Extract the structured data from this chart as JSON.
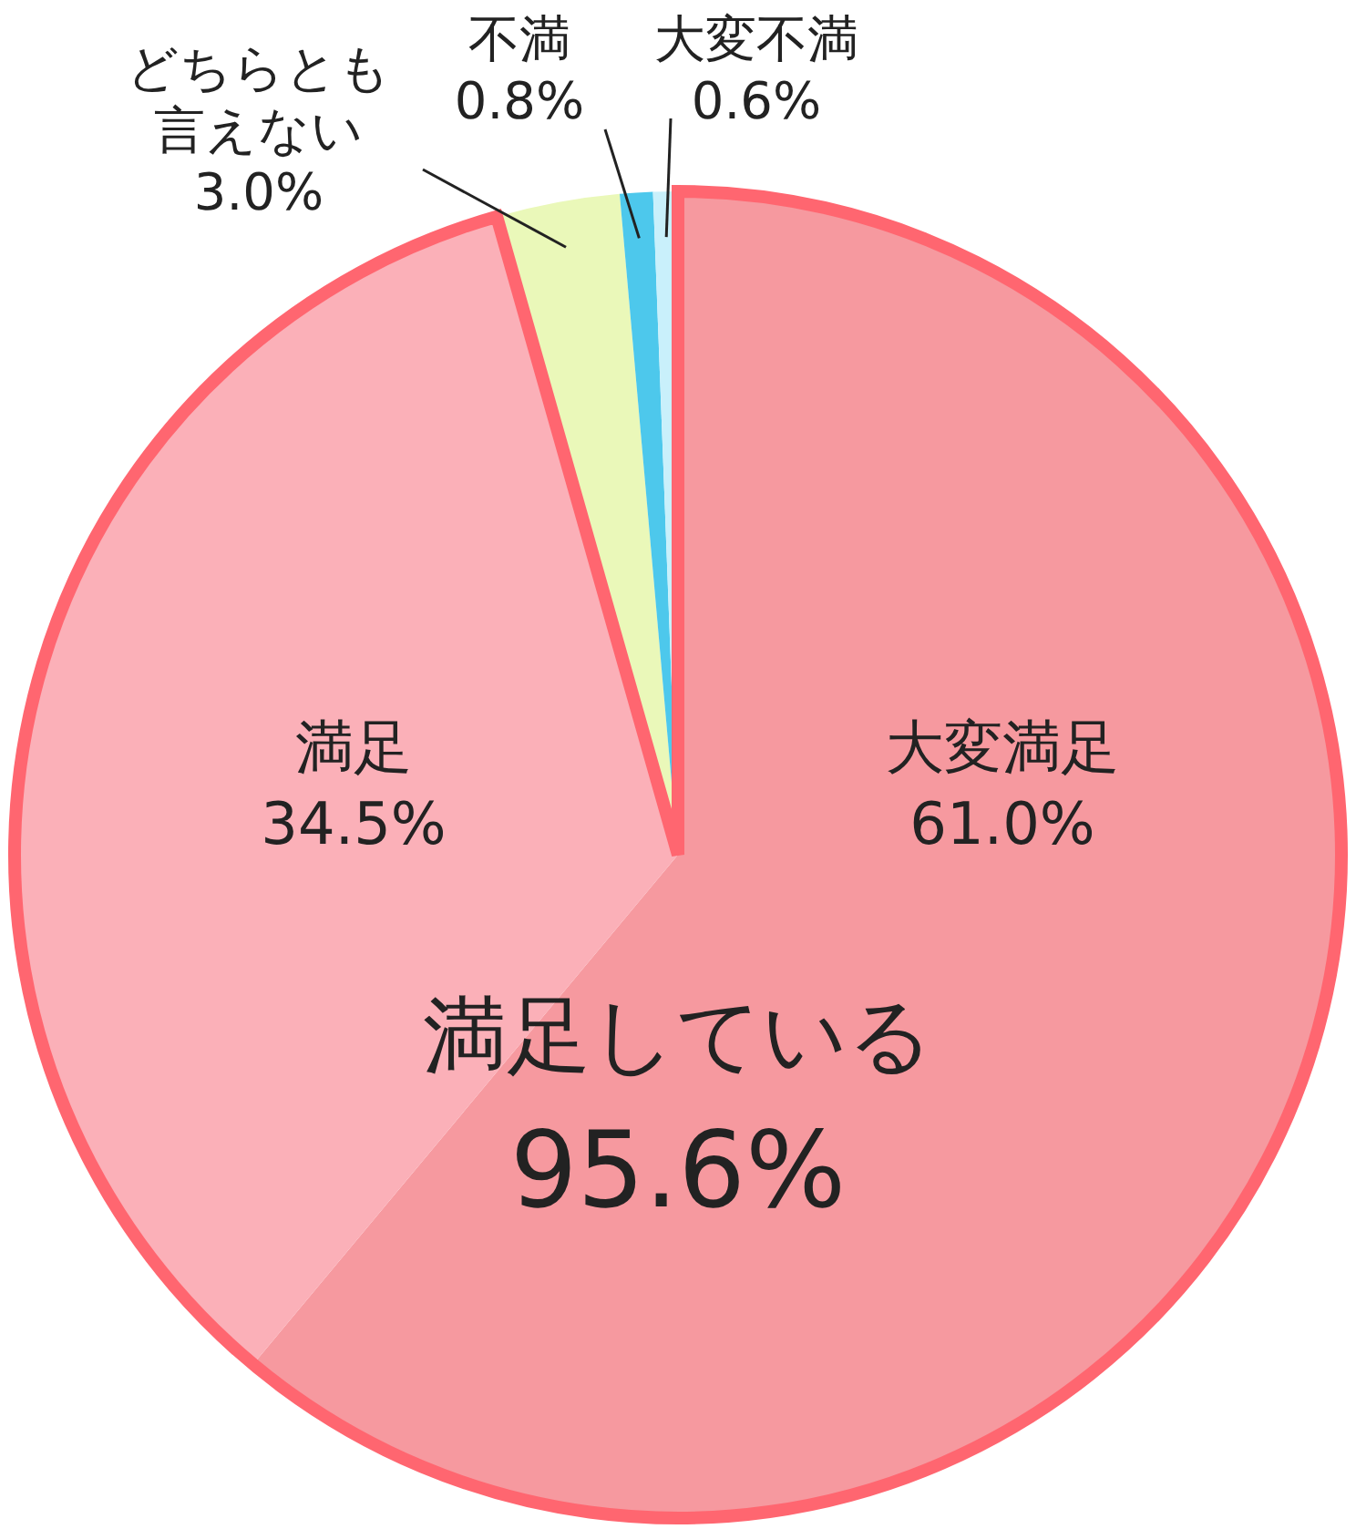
{
  "chart_data": {
    "type": "pie",
    "categories": [
      "大変満足",
      "満足",
      "どちらとも言えない",
      "不満",
      "大変不満"
    ],
    "values": [
      61.0,
      34.5,
      3.0,
      0.8,
      0.6
    ],
    "colors": [
      "#f6999f",
      "#fbb0b8",
      "#eaf8b9",
      "#4dc8ec",
      "#c9f0fb"
    ],
    "value_labels": [
      "61.0%",
      "34.5%",
      "3.0%",
      "0.8%",
      "0.6%"
    ],
    "annotations": [
      "満足している\n95.6%"
    ]
  }
}
